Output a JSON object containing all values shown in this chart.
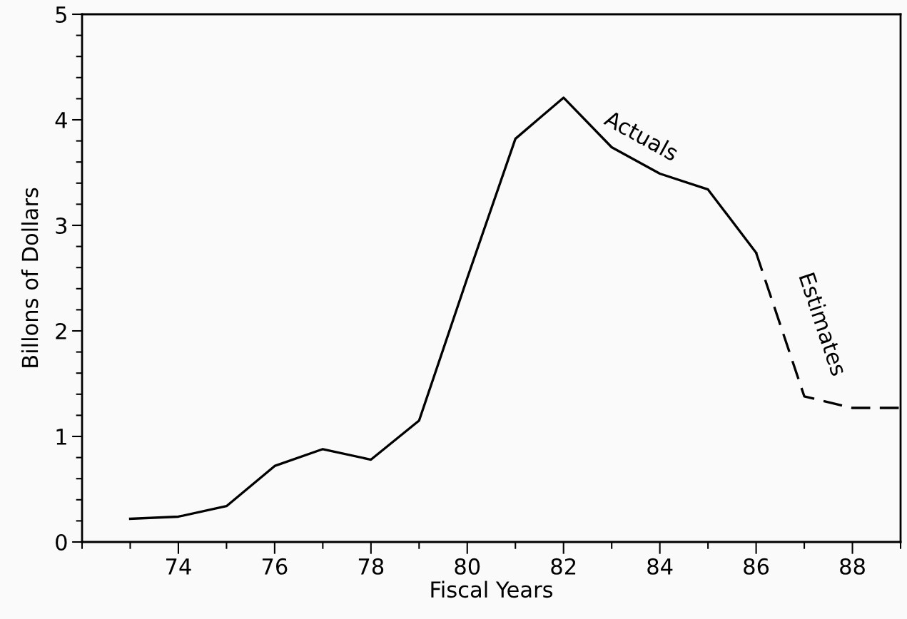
{
  "chart_data": {
    "type": "line",
    "xlabel": "Fiscal Years",
    "ylabel": "Billons of Dollars",
    "xlim": [
      72,
      89
    ],
    "ylim": [
      0,
      5
    ],
    "xticks": [
      {
        "value": 72,
        "label": null
      },
      {
        "value": 73,
        "label": null
      },
      74,
      {
        "value": 75,
        "label": null
      },
      76,
      {
        "value": 77,
        "label": null
      },
      78,
      {
        "value": 79,
        "label": null
      },
      80,
      {
        "value": 81,
        "label": null
      },
      82,
      {
        "value": 83,
        "label": null
      },
      84,
      {
        "value": 85,
        "label": null
      },
      86,
      {
        "value": 87,
        "label": null
      },
      88,
      {
        "value": 89,
        "label": null
      }
    ],
    "yticks": [
      0,
      {
        "value": 0.2,
        "label": null
      },
      {
        "value": 0.4,
        "label": null
      },
      {
        "value": 0.6,
        "label": null
      },
      {
        "value": 0.8,
        "label": null
      },
      1,
      {
        "value": 1.2,
        "label": null
      },
      {
        "value": 1.4,
        "label": null
      },
      {
        "value": 1.6,
        "label": null
      },
      {
        "value": 1.8,
        "label": null
      },
      2,
      {
        "value": 2.2,
        "label": null
      },
      {
        "value": 2.4,
        "label": null
      },
      {
        "value": 2.6,
        "label": null
      },
      {
        "value": 2.8,
        "label": null
      },
      3,
      {
        "value": 3.2,
        "label": null
      },
      {
        "value": 3.4,
        "label": null
      },
      {
        "value": 3.6,
        "label": null
      },
      {
        "value": 3.8,
        "label": null
      },
      4,
      {
        "value": 4.2,
        "label": null
      },
      {
        "value": 4.4,
        "label": null
      },
      {
        "value": 4.6,
        "label": null
      },
      {
        "value": 4.8,
        "label": null
      },
      5
    ],
    "grid": false,
    "marker": "none",
    "series": [
      {
        "name": "Actuals",
        "color": "#000000",
        "line_style": "solid",
        "x": [
          73,
          74,
          75,
          76,
          77,
          78,
          79,
          80,
          81,
          82,
          83,
          84,
          85,
          86
        ],
        "values": [
          0.22,
          0.24,
          0.34,
          0.72,
          0.88,
          0.78,
          1.15,
          2.5,
          3.82,
          4.21,
          3.74,
          3.49,
          3.34,
          2.74
        ]
      },
      {
        "name": "Estimates",
        "color": "#000000",
        "line_style": "dashed",
        "x": [
          86,
          87,
          88,
          89
        ],
        "values": [
          2.74,
          1.38,
          1.27,
          1.27
        ]
      }
    ]
  }
}
